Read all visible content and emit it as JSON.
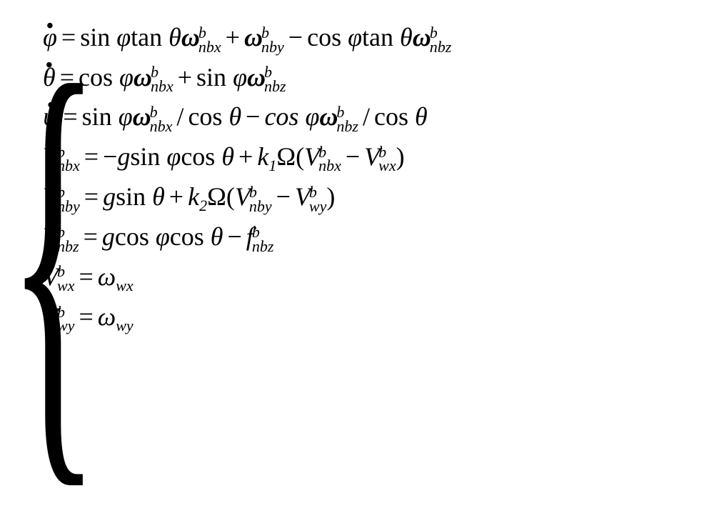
{
  "equations": {
    "type": "math-system",
    "background_color": "#ffffff",
    "text_color": "#000000",
    "font_family": "Times New Roman",
    "font_size_main": 36,
    "font_size_subsup": 22,
    "brace": "{",
    "lines": [
      {
        "lhs": {
          "symbol": "φ",
          "dot": true
        },
        "rhs_display": "sin φ tan θ ω_nbx^b + ω_nby^b − cos φ tan θ ω_nbz^b",
        "terms": [
          {
            "text": "sin",
            "type": "func"
          },
          {
            "text": "φ",
            "type": "var"
          },
          {
            "text": "tan",
            "type": "func"
          },
          {
            "text": "θ",
            "type": "var"
          },
          {
            "text": "ω",
            "type": "var",
            "bold": true,
            "sup": "b",
            "sub": "nbx"
          },
          {
            "text": "+",
            "type": "op"
          },
          {
            "text": "ω",
            "type": "var",
            "bold": true,
            "sup": "b",
            "sub": "nby"
          },
          {
            "text": "−",
            "type": "op"
          },
          {
            "text": "cos",
            "type": "func"
          },
          {
            "text": "φ",
            "type": "var"
          },
          {
            "text": "tan",
            "type": "func"
          },
          {
            "text": "θ",
            "type": "var"
          },
          {
            "text": "ω",
            "type": "var",
            "bold": true,
            "sup": "b",
            "sub": "nbz"
          }
        ]
      },
      {
        "lhs": {
          "symbol": "θ",
          "dot": true
        },
        "rhs_display": "cos φ ω_nbx^b + sin φ ω_nbz^b",
        "terms": [
          {
            "text": "cos",
            "type": "func"
          },
          {
            "text": "φ",
            "type": "var"
          },
          {
            "text": "ω",
            "type": "var",
            "bold": true,
            "sup": "b",
            "sub": "nbx"
          },
          {
            "text": "+",
            "type": "op"
          },
          {
            "text": "sin",
            "type": "func"
          },
          {
            "text": "φ",
            "type": "var"
          },
          {
            "text": "ω",
            "type": "var",
            "bold": true,
            "sup": "b",
            "sub": "nbz"
          }
        ]
      },
      {
        "lhs": {
          "symbol": "ψ",
          "dot": true
        },
        "rhs_display": "sin φ ω_nbx^b / cos θ − cos φ ω_nbz^b / cos θ",
        "terms": [
          {
            "text": "sin",
            "type": "func"
          },
          {
            "text": "φ",
            "type": "var"
          },
          {
            "text": "ω",
            "type": "var",
            "bold": true,
            "sup": "b",
            "sub": "nbx"
          },
          {
            "text": "/",
            "type": "op"
          },
          {
            "text": "cos",
            "type": "func"
          },
          {
            "text": "θ",
            "type": "var"
          },
          {
            "text": "−",
            "type": "op"
          },
          {
            "text": "cos",
            "type": "func-italic"
          },
          {
            "text": "φ",
            "type": "var"
          },
          {
            "text": "ω",
            "type": "var",
            "bold": true,
            "sup": "b",
            "sub": "nbz"
          },
          {
            "text": "/",
            "type": "op"
          },
          {
            "text": "cos",
            "type": "func"
          },
          {
            "text": "θ",
            "type": "var"
          }
        ]
      },
      {
        "lhs": {
          "symbol": "V",
          "dot": true,
          "sup": "b",
          "sub": "nbx"
        },
        "rhs_display": "−g sin φ cos θ + k_1 Ω (V_nbx^b − V_wx^b)",
        "terms": [
          {
            "text": "−",
            "type": "op-tight"
          },
          {
            "text": "g",
            "type": "var"
          },
          {
            "text": "sin",
            "type": "func"
          },
          {
            "text": "φ",
            "type": "var"
          },
          {
            "text": "cos",
            "type": "func"
          },
          {
            "text": "θ",
            "type": "var"
          },
          {
            "text": "+",
            "type": "op"
          },
          {
            "text": "k",
            "type": "var",
            "sub": "1"
          },
          {
            "text": "Ω",
            "type": "var-upright"
          },
          {
            "text": "(",
            "type": "paren"
          },
          {
            "text": "V",
            "type": "var",
            "sup": "b",
            "sub": "nbx"
          },
          {
            "text": "−",
            "type": "op"
          },
          {
            "text": "V",
            "type": "var",
            "sup": "b",
            "sub": "wx"
          },
          {
            "text": ")",
            "type": "paren"
          }
        ]
      },
      {
        "lhs": {
          "symbol": "V",
          "dot": true,
          "sup": "b",
          "sub": "nby"
        },
        "rhs_display": "g sin θ + k_2 Ω (V_nby^b − V_wy^b)",
        "terms": [
          {
            "text": "g",
            "type": "var"
          },
          {
            "text": "sin",
            "type": "func"
          },
          {
            "text": "θ",
            "type": "var"
          },
          {
            "text": "+",
            "type": "op"
          },
          {
            "text": "k",
            "type": "var",
            "sub": "2"
          },
          {
            "text": "Ω",
            "type": "var-upright"
          },
          {
            "text": "(",
            "type": "paren"
          },
          {
            "text": "V",
            "type": "var",
            "sup": "b",
            "sub": "nby"
          },
          {
            "text": "−",
            "type": "op"
          },
          {
            "text": "V",
            "type": "var",
            "sup": "b",
            "sub": "wy"
          },
          {
            "text": ")",
            "type": "paren"
          }
        ]
      },
      {
        "lhs": {
          "symbol": "V",
          "dot": true,
          "sup": "b",
          "sub": "nbz"
        },
        "rhs_display": "g cos φ cos θ − f_nbz^b",
        "terms": [
          {
            "text": "g",
            "type": "var"
          },
          {
            "text": "cos",
            "type": "func"
          },
          {
            "text": "φ",
            "type": "var"
          },
          {
            "text": "cos",
            "type": "func"
          },
          {
            "text": "θ",
            "type": "var"
          },
          {
            "text": "−",
            "type": "op"
          },
          {
            "text": "f",
            "type": "var",
            "sup": "b",
            "sub": "nbz"
          }
        ]
      },
      {
        "lhs": {
          "symbol": "V",
          "dot": true,
          "sup": "b",
          "sub": "wx"
        },
        "rhs_display": "ω_wx",
        "terms": [
          {
            "text": "ω",
            "type": "var",
            "sub": "wx"
          }
        ]
      },
      {
        "lhs": {
          "symbol": "V",
          "dot": true,
          "sup": "b",
          "sub": "wy"
        },
        "rhs_display": "ω_wy",
        "terms": [
          {
            "text": "ω",
            "type": "var",
            "sub": "wy"
          }
        ]
      }
    ]
  }
}
